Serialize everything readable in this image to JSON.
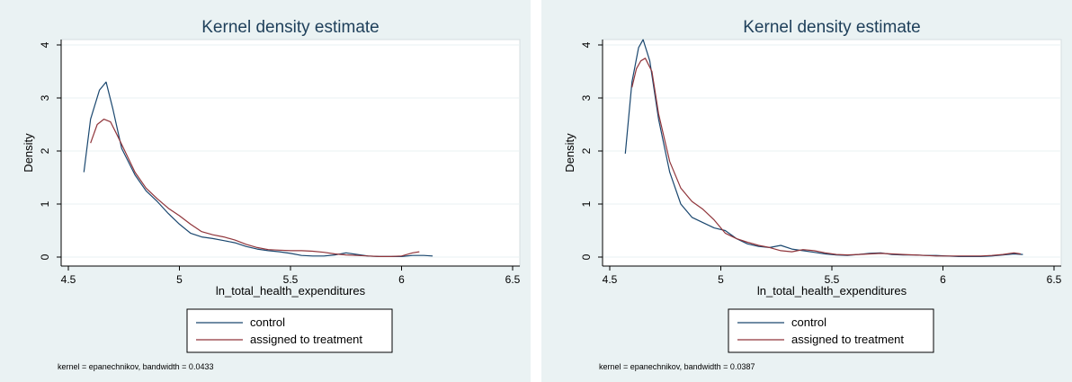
{
  "chart_data": [
    {
      "type": "line",
      "title": "Kernel density estimate",
      "xlabel": "ln_total_health_expenditures",
      "ylabel": "Density",
      "xlim": [
        4.5,
        6.5
      ],
      "ylim": [
        0,
        4
      ],
      "xticks": [
        "4.5",
        "5",
        "5.5",
        "6",
        "6.5"
      ],
      "yticks": [
        "0",
        "1",
        "2",
        "3",
        "4"
      ],
      "grid": true,
      "legend": "bottom",
      "note": "kernel = epanechnikov, bandwidth = 0.0433",
      "series": [
        {
          "name": "control",
          "color": "#1a476f",
          "x": [
            4.57,
            4.6,
            4.64,
            4.67,
            4.7,
            4.74,
            4.8,
            4.85,
            4.9,
            4.95,
            5.0,
            5.05,
            5.1,
            5.15,
            5.2,
            5.25,
            5.3,
            5.35,
            5.4,
            5.45,
            5.5,
            5.55,
            5.6,
            5.65,
            5.7,
            5.75,
            5.8,
            5.85,
            5.9,
            5.95,
            6.0,
            6.05,
            6.1,
            6.14
          ],
          "y": [
            1.6,
            2.6,
            3.15,
            3.3,
            2.8,
            2.05,
            1.55,
            1.25,
            1.05,
            0.82,
            0.62,
            0.45,
            0.38,
            0.35,
            0.31,
            0.27,
            0.2,
            0.15,
            0.12,
            0.1,
            0.07,
            0.03,
            0.02,
            0.02,
            0.04,
            0.08,
            0.05,
            0.02,
            0.01,
            0.01,
            0.01,
            0.03,
            0.03,
            0.02
          ]
        },
        {
          "name": "assigned to treatment",
          "color": "#90353b",
          "x": [
            4.6,
            4.63,
            4.66,
            4.69,
            4.72,
            4.76,
            4.8,
            4.85,
            4.9,
            4.95,
            5.0,
            5.05,
            5.1,
            5.15,
            5.2,
            5.25,
            5.3,
            5.35,
            5.4,
            5.45,
            5.5,
            5.55,
            5.6,
            5.65,
            5.7,
            5.75,
            5.8,
            5.85,
            5.9,
            5.95,
            6.0,
            6.05,
            6.08
          ],
          "y": [
            2.15,
            2.5,
            2.6,
            2.55,
            2.3,
            1.95,
            1.6,
            1.3,
            1.1,
            0.92,
            0.78,
            0.62,
            0.48,
            0.42,
            0.38,
            0.32,
            0.24,
            0.18,
            0.14,
            0.13,
            0.12,
            0.12,
            0.11,
            0.09,
            0.06,
            0.04,
            0.03,
            0.02,
            0.01,
            0.01,
            0.02,
            0.08,
            0.1
          ]
        }
      ]
    },
    {
      "type": "line",
      "title": "Kernel density estimate",
      "xlabel": "ln_total_health_expenditures",
      "ylabel": "Density",
      "xlim": [
        4.5,
        6.5
      ],
      "ylim": [
        0,
        4
      ],
      "xticks": [
        "4.5",
        "5",
        "5.5",
        "6",
        "6.5"
      ],
      "yticks": [
        "0",
        "1",
        "2",
        "3",
        "4"
      ],
      "grid": true,
      "legend": "bottom",
      "note": "kernel = epanechnikov, bandwidth = 0.0387",
      "series": [
        {
          "name": "control",
          "color": "#1a476f",
          "x": [
            4.57,
            4.6,
            4.63,
            4.65,
            4.68,
            4.72,
            4.77,
            4.82,
            4.87,
            4.92,
            4.97,
            5.02,
            5.07,
            5.12,
            5.17,
            5.22,
            5.27,
            5.32,
            5.37,
            5.42,
            5.47,
            5.52,
            5.57,
            5.62,
            5.67,
            5.72,
            5.77,
            5.82,
            5.87,
            5.92,
            5.97,
            6.02,
            6.07,
            6.12,
            6.17,
            6.22,
            6.27,
            6.32,
            6.36
          ],
          "y": [
            1.95,
            3.3,
            3.95,
            4.1,
            3.7,
            2.6,
            1.6,
            1.0,
            0.75,
            0.65,
            0.55,
            0.5,
            0.35,
            0.25,
            0.2,
            0.18,
            0.22,
            0.15,
            0.12,
            0.09,
            0.06,
            0.04,
            0.03,
            0.05,
            0.07,
            0.08,
            0.05,
            0.04,
            0.04,
            0.03,
            0.03,
            0.02,
            0.01,
            0.01,
            0.01,
            0.02,
            0.04,
            0.06,
            0.05
          ]
        },
        {
          "name": "assigned to treatment",
          "color": "#90353b",
          "x": [
            4.6,
            4.62,
            4.64,
            4.66,
            4.69,
            4.72,
            4.77,
            4.82,
            4.87,
            4.92,
            4.97,
            5.02,
            5.07,
            5.12,
            5.17,
            5.22,
            5.27,
            5.32,
            5.37,
            5.42,
            5.47,
            5.52,
            5.57,
            5.62,
            5.67,
            5.72,
            5.77,
            5.82,
            5.87,
            5.92,
            5.97,
            6.02,
            6.07,
            6.12,
            6.17,
            6.22,
            6.27,
            6.32,
            6.35
          ],
          "y": [
            3.2,
            3.55,
            3.7,
            3.75,
            3.5,
            2.7,
            1.8,
            1.3,
            1.05,
            0.9,
            0.7,
            0.45,
            0.35,
            0.28,
            0.22,
            0.18,
            0.12,
            0.1,
            0.14,
            0.12,
            0.08,
            0.05,
            0.04,
            0.05,
            0.06,
            0.07,
            0.06,
            0.05,
            0.04,
            0.03,
            0.02,
            0.02,
            0.02,
            0.02,
            0.02,
            0.03,
            0.05,
            0.08,
            0.06
          ]
        }
      ]
    }
  ]
}
